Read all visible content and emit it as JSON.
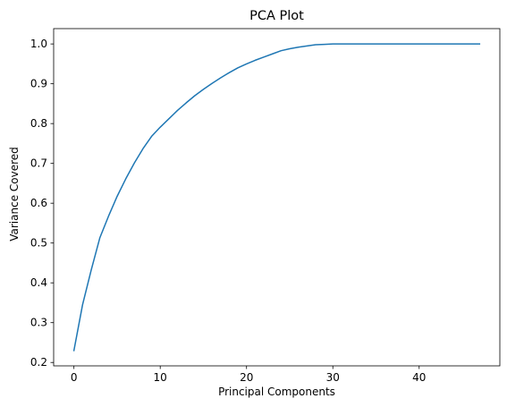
{
  "chart_data": {
    "type": "line",
    "title": "PCA Plot",
    "xlabel": "Principal Components",
    "ylabel": "Variance Covered",
    "xlim": [
      -2.35,
      49.35
    ],
    "ylim": [
      0.1915,
      1.0385
    ],
    "x_ticks": [
      0,
      10,
      20,
      30,
      40
    ],
    "y_ticks": [
      0.2,
      0.3,
      0.4,
      0.5,
      0.6,
      0.7,
      0.8,
      0.9,
      1.0
    ],
    "x_tick_labels": [
      "0",
      "10",
      "20",
      "30",
      "40"
    ],
    "y_tick_labels": [
      "0.2",
      "0.3",
      "0.4",
      "0.5",
      "0.6",
      "0.7",
      "0.8",
      "0.9",
      "1.0"
    ],
    "grid": false,
    "legend": "none",
    "series": [
      {
        "color": "#1f77b4",
        "x": [
          0,
          1,
          2,
          3,
          4,
          5,
          6,
          7,
          8,
          9,
          10,
          11,
          12,
          13,
          14,
          15,
          16,
          17,
          18,
          19,
          20,
          21,
          22,
          23,
          24,
          25,
          26,
          27,
          28,
          29,
          30,
          31,
          32,
          33,
          34,
          35,
          36,
          37,
          38,
          39,
          40,
          41,
          42,
          43,
          44,
          45,
          46,
          47
        ],
        "y": [
          0.23,
          0.345,
          0.432,
          0.513,
          0.567,
          0.617,
          0.661,
          0.701,
          0.737,
          0.768,
          0.791,
          0.812,
          0.833,
          0.852,
          0.87,
          0.886,
          0.901,
          0.915,
          0.928,
          0.94,
          0.95,
          0.959,
          0.967,
          0.975,
          0.983,
          0.988,
          0.992,
          0.995,
          0.998,
          0.999,
          1.0,
          1.0,
          1.0,
          1.0,
          1.0,
          1.0,
          1.0,
          1.0,
          1.0,
          1.0,
          1.0,
          1.0,
          1.0,
          1.0,
          1.0,
          1.0,
          1.0,
          1.0
        ]
      }
    ]
  }
}
